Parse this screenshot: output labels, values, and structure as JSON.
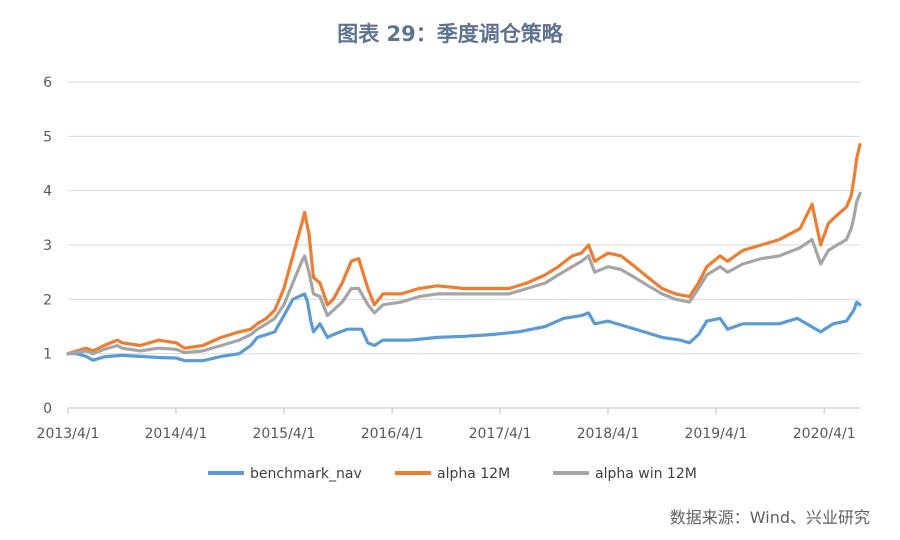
{
  "title": "图表 29：季度调仓策略",
  "source": "数据来源：Wind、兴业研究",
  "chart_data": {
    "type": "line",
    "xlabel": "",
    "ylabel": "",
    "ylim": [
      0,
      6
    ],
    "yticks": [
      "0",
      "1",
      "2",
      "3",
      "4",
      "5",
      "6"
    ],
    "xlim": [
      "2013-04-01",
      "2020-07-31"
    ],
    "xticks": [
      "2013/4/1",
      "2014/4/1",
      "2015/4/1",
      "2016/4/1",
      "2017/4/1",
      "2018/4/1",
      "2019/4/1",
      "2020/4/1"
    ],
    "grid": "horizontal",
    "legend": "bottom",
    "series": [
      {
        "name": "benchmark_nav",
        "color": "#5b9bd5",
        "points": [
          [
            "2013-04-01",
            1.0
          ],
          [
            "2013-05-01",
            1.0
          ],
          [
            "2013-06-01",
            0.95
          ],
          [
            "2013-06-25",
            0.88
          ],
          [
            "2013-08-01",
            0.94
          ],
          [
            "2013-10-01",
            0.97
          ],
          [
            "2013-12-01",
            0.95
          ],
          [
            "2014-02-01",
            0.93
          ],
          [
            "2014-04-01",
            0.92
          ],
          [
            "2014-05-01",
            0.87
          ],
          [
            "2014-07-01",
            0.87
          ],
          [
            "2014-09-01",
            0.95
          ],
          [
            "2014-11-01",
            1.0
          ],
          [
            "2014-12-10",
            1.15
          ],
          [
            "2015-01-01",
            1.3
          ],
          [
            "2015-02-01",
            1.35
          ],
          [
            "2015-03-01",
            1.4
          ],
          [
            "2015-04-01",
            1.7
          ],
          [
            "2015-05-01",
            2.0
          ],
          [
            "2015-06-10",
            2.1
          ],
          [
            "2015-06-20",
            1.95
          ],
          [
            "2015-07-01",
            1.6
          ],
          [
            "2015-07-10",
            1.4
          ],
          [
            "2015-08-01",
            1.55
          ],
          [
            "2015-08-26",
            1.3
          ],
          [
            "2015-09-15",
            1.35
          ],
          [
            "2015-11-01",
            1.45
          ],
          [
            "2015-12-20",
            1.45
          ],
          [
            "2016-01-10",
            1.2
          ],
          [
            "2016-02-01",
            1.15
          ],
          [
            "2016-03-01",
            1.25
          ],
          [
            "2016-06-01",
            1.25
          ],
          [
            "2016-09-01",
            1.3
          ],
          [
            "2016-12-01",
            1.32
          ],
          [
            "2017-03-01",
            1.35
          ],
          [
            "2017-06-01",
            1.4
          ],
          [
            "2017-09-01",
            1.5
          ],
          [
            "2017-11-01",
            1.65
          ],
          [
            "2018-01-01",
            1.7
          ],
          [
            "2018-01-25",
            1.75
          ],
          [
            "2018-02-15",
            1.55
          ],
          [
            "2018-04-01",
            1.6
          ],
          [
            "2018-06-01",
            1.5
          ],
          [
            "2018-08-01",
            1.4
          ],
          [
            "2018-10-01",
            1.3
          ],
          [
            "2018-12-01",
            1.25
          ],
          [
            "2019-01-01",
            1.2
          ],
          [
            "2019-02-01",
            1.35
          ],
          [
            "2019-03-01",
            1.6
          ],
          [
            "2019-04-15",
            1.65
          ],
          [
            "2019-05-10",
            1.45
          ],
          [
            "2019-07-01",
            1.55
          ],
          [
            "2019-09-01",
            1.55
          ],
          [
            "2019-11-01",
            1.55
          ],
          [
            "2020-01-01",
            1.65
          ],
          [
            "2020-02-01",
            1.55
          ],
          [
            "2020-03-20",
            1.4
          ],
          [
            "2020-05-01",
            1.55
          ],
          [
            "2020-06-15",
            1.6
          ],
          [
            "2020-07-10",
            1.8
          ],
          [
            "2020-07-20",
            1.95
          ],
          [
            "2020-07-31",
            1.9
          ]
        ]
      },
      {
        "name": "alpha 12M",
        "color": "#ed7d31",
        "points": [
          [
            "2013-04-01",
            1.0
          ],
          [
            "2013-05-01",
            1.05
          ],
          [
            "2013-06-01",
            1.1
          ],
          [
            "2013-06-25",
            1.05
          ],
          [
            "2013-08-01",
            1.15
          ],
          [
            "2013-09-15",
            1.25
          ],
          [
            "2013-10-01",
            1.2
          ],
          [
            "2013-12-01",
            1.15
          ],
          [
            "2014-02-01",
            1.25
          ],
          [
            "2014-04-01",
            1.2
          ],
          [
            "2014-05-01",
            1.1
          ],
          [
            "2014-07-01",
            1.15
          ],
          [
            "2014-09-01",
            1.3
          ],
          [
            "2014-11-01",
            1.4
          ],
          [
            "2014-12-10",
            1.45
          ],
          [
            "2015-01-01",
            1.55
          ],
          [
            "2015-02-01",
            1.65
          ],
          [
            "2015-03-01",
            1.8
          ],
          [
            "2015-04-01",
            2.2
          ],
          [
            "2015-05-01",
            2.8
          ],
          [
            "2015-06-01",
            3.4
          ],
          [
            "2015-06-10",
            3.6
          ],
          [
            "2015-06-25",
            3.2
          ],
          [
            "2015-07-10",
            2.4
          ],
          [
            "2015-08-01",
            2.3
          ],
          [
            "2015-08-26",
            1.9
          ],
          [
            "2015-09-15",
            2.0
          ],
          [
            "2015-10-15",
            2.3
          ],
          [
            "2015-11-15",
            2.7
          ],
          [
            "2015-12-10",
            2.75
          ],
          [
            "2016-01-10",
            2.2
          ],
          [
            "2016-02-01",
            1.9
          ],
          [
            "2016-03-01",
            2.1
          ],
          [
            "2016-05-01",
            2.1
          ],
          [
            "2016-07-01",
            2.2
          ],
          [
            "2016-09-01",
            2.25
          ],
          [
            "2016-12-01",
            2.2
          ],
          [
            "2017-02-01",
            2.2
          ],
          [
            "2017-05-01",
            2.2
          ],
          [
            "2017-07-01",
            2.3
          ],
          [
            "2017-09-01",
            2.45
          ],
          [
            "2017-10-15",
            2.6
          ],
          [
            "2017-12-01",
            2.8
          ],
          [
            "2018-01-01",
            2.85
          ],
          [
            "2018-01-25",
            3.0
          ],
          [
            "2018-02-15",
            2.7
          ],
          [
            "2018-04-01",
            2.85
          ],
          [
            "2018-05-15",
            2.8
          ],
          [
            "2018-07-01",
            2.6
          ],
          [
            "2018-08-15",
            2.4
          ],
          [
            "2018-10-01",
            2.2
          ],
          [
            "2018-11-15",
            2.1
          ],
          [
            "2019-01-01",
            2.05
          ],
          [
            "2019-02-01",
            2.3
          ],
          [
            "2019-03-01",
            2.6
          ],
          [
            "2019-04-15",
            2.8
          ],
          [
            "2019-05-10",
            2.7
          ],
          [
            "2019-07-01",
            2.9
          ],
          [
            "2019-09-01",
            3.0
          ],
          [
            "2019-11-01",
            3.1
          ],
          [
            "2020-01-10",
            3.3
          ],
          [
            "2020-02-20",
            3.75
          ],
          [
            "2020-03-20",
            3.0
          ],
          [
            "2020-04-15",
            3.4
          ],
          [
            "2020-05-15",
            3.55
          ],
          [
            "2020-06-15",
            3.7
          ],
          [
            "2020-07-01",
            3.9
          ],
          [
            "2020-07-10",
            4.2
          ],
          [
            "2020-07-20",
            4.6
          ],
          [
            "2020-07-31",
            4.85
          ]
        ]
      },
      {
        "name": "alpha win 12M",
        "color": "#a5a5a5",
        "points": [
          [
            "2013-04-01",
            1.0
          ],
          [
            "2013-05-01",
            1.02
          ],
          [
            "2013-06-01",
            1.05
          ],
          [
            "2013-06-25",
            1.0
          ],
          [
            "2013-08-01",
            1.08
          ],
          [
            "2013-09-15",
            1.15
          ],
          [
            "2013-10-01",
            1.1
          ],
          [
            "2013-12-01",
            1.05
          ],
          [
            "2014-02-01",
            1.1
          ],
          [
            "2014-04-01",
            1.08
          ],
          [
            "2014-05-01",
            1.02
          ],
          [
            "2014-07-01",
            1.05
          ],
          [
            "2014-09-01",
            1.15
          ],
          [
            "2014-11-01",
            1.25
          ],
          [
            "2014-12-10",
            1.35
          ],
          [
            "2015-01-01",
            1.45
          ],
          [
            "2015-02-01",
            1.55
          ],
          [
            "2015-03-01",
            1.65
          ],
          [
            "2015-04-01",
            1.9
          ],
          [
            "2015-05-01",
            2.3
          ],
          [
            "2015-06-01",
            2.7
          ],
          [
            "2015-06-10",
            2.8
          ],
          [
            "2015-06-25",
            2.5
          ],
          [
            "2015-07-10",
            2.1
          ],
          [
            "2015-08-01",
            2.05
          ],
          [
            "2015-08-26",
            1.7
          ],
          [
            "2015-09-15",
            1.8
          ],
          [
            "2015-10-15",
            1.95
          ],
          [
            "2015-11-15",
            2.2
          ],
          [
            "2015-12-10",
            2.2
          ],
          [
            "2016-01-10",
            1.9
          ],
          [
            "2016-02-01",
            1.75
          ],
          [
            "2016-03-01",
            1.9
          ],
          [
            "2016-05-01",
            1.95
          ],
          [
            "2016-07-01",
            2.05
          ],
          [
            "2016-09-01",
            2.1
          ],
          [
            "2016-12-01",
            2.1
          ],
          [
            "2017-02-01",
            2.1
          ],
          [
            "2017-05-01",
            2.1
          ],
          [
            "2017-07-01",
            2.2
          ],
          [
            "2017-09-01",
            2.3
          ],
          [
            "2017-10-15",
            2.45
          ],
          [
            "2017-12-01",
            2.6
          ],
          [
            "2018-01-01",
            2.7
          ],
          [
            "2018-01-25",
            2.8
          ],
          [
            "2018-02-15",
            2.5
          ],
          [
            "2018-04-01",
            2.6
          ],
          [
            "2018-05-15",
            2.55
          ],
          [
            "2018-07-01",
            2.4
          ],
          [
            "2018-08-15",
            2.25
          ],
          [
            "2018-10-01",
            2.1
          ],
          [
            "2018-11-15",
            2.0
          ],
          [
            "2019-01-01",
            1.95
          ],
          [
            "2019-02-01",
            2.2
          ],
          [
            "2019-03-01",
            2.45
          ],
          [
            "2019-04-15",
            2.6
          ],
          [
            "2019-05-10",
            2.5
          ],
          [
            "2019-07-01",
            2.65
          ],
          [
            "2019-09-01",
            2.75
          ],
          [
            "2019-11-01",
            2.8
          ],
          [
            "2020-01-10",
            2.95
          ],
          [
            "2020-02-20",
            3.1
          ],
          [
            "2020-03-20",
            2.65
          ],
          [
            "2020-04-15",
            2.9
          ],
          [
            "2020-05-15",
            3.0
          ],
          [
            "2020-06-15",
            3.1
          ],
          [
            "2020-07-01",
            3.3
          ],
          [
            "2020-07-10",
            3.5
          ],
          [
            "2020-07-20",
            3.8
          ],
          [
            "2020-07-31",
            3.95
          ]
        ]
      }
    ]
  }
}
